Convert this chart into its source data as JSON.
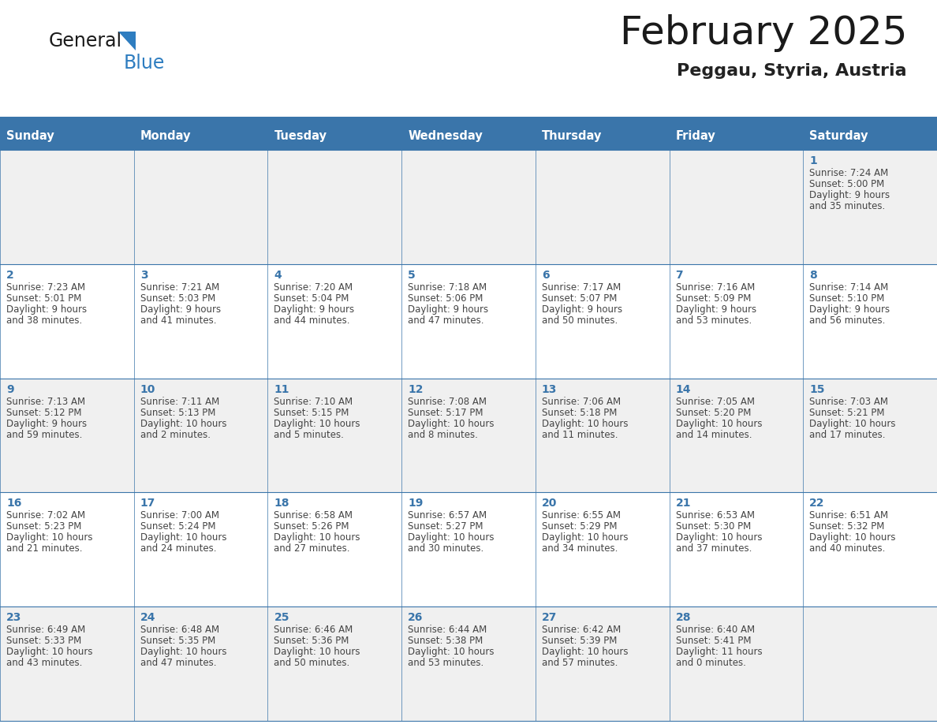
{
  "title": "February 2025",
  "subtitle": "Peggau, Styria, Austria",
  "days_of_week": [
    "Sunday",
    "Monday",
    "Tuesday",
    "Wednesday",
    "Thursday",
    "Friday",
    "Saturday"
  ],
  "header_bg": "#3A75AA",
  "header_text": "#FFFFFF",
  "cell_bg_odd": "#F0F0F0",
  "cell_bg_even": "#FFFFFF",
  "day_num_color": "#3A75AA",
  "info_text_color": "#444444",
  "border_color": "#3A75AA",
  "title_color": "#1a1a1a",
  "subtitle_color": "#222222",
  "logo_general_color": "#1a1a1a",
  "logo_blue_color": "#2E7DC0",
  "calendar_data": [
    [
      null,
      null,
      null,
      null,
      null,
      null,
      {
        "day": 1,
        "sunrise": "Sunrise: 7:24 AM",
        "sunset": "Sunset: 5:00 PM",
        "daylight": "Daylight: 9 hours",
        "daylight2": "and 35 minutes."
      }
    ],
    [
      {
        "day": 2,
        "sunrise": "Sunrise: 7:23 AM",
        "sunset": "Sunset: 5:01 PM",
        "daylight": "Daylight: 9 hours",
        "daylight2": "and 38 minutes."
      },
      {
        "day": 3,
        "sunrise": "Sunrise: 7:21 AM",
        "sunset": "Sunset: 5:03 PM",
        "daylight": "Daylight: 9 hours",
        "daylight2": "and 41 minutes."
      },
      {
        "day": 4,
        "sunrise": "Sunrise: 7:20 AM",
        "sunset": "Sunset: 5:04 PM",
        "daylight": "Daylight: 9 hours",
        "daylight2": "and 44 minutes."
      },
      {
        "day": 5,
        "sunrise": "Sunrise: 7:18 AM",
        "sunset": "Sunset: 5:06 PM",
        "daylight": "Daylight: 9 hours",
        "daylight2": "and 47 minutes."
      },
      {
        "day": 6,
        "sunrise": "Sunrise: 7:17 AM",
        "sunset": "Sunset: 5:07 PM",
        "daylight": "Daylight: 9 hours",
        "daylight2": "and 50 minutes."
      },
      {
        "day": 7,
        "sunrise": "Sunrise: 7:16 AM",
        "sunset": "Sunset: 5:09 PM",
        "daylight": "Daylight: 9 hours",
        "daylight2": "and 53 minutes."
      },
      {
        "day": 8,
        "sunrise": "Sunrise: 7:14 AM",
        "sunset": "Sunset: 5:10 PM",
        "daylight": "Daylight: 9 hours",
        "daylight2": "and 56 minutes."
      }
    ],
    [
      {
        "day": 9,
        "sunrise": "Sunrise: 7:13 AM",
        "sunset": "Sunset: 5:12 PM",
        "daylight": "Daylight: 9 hours",
        "daylight2": "and 59 minutes."
      },
      {
        "day": 10,
        "sunrise": "Sunrise: 7:11 AM",
        "sunset": "Sunset: 5:13 PM",
        "daylight": "Daylight: 10 hours",
        "daylight2": "and 2 minutes."
      },
      {
        "day": 11,
        "sunrise": "Sunrise: 7:10 AM",
        "sunset": "Sunset: 5:15 PM",
        "daylight": "Daylight: 10 hours",
        "daylight2": "and 5 minutes."
      },
      {
        "day": 12,
        "sunrise": "Sunrise: 7:08 AM",
        "sunset": "Sunset: 5:17 PM",
        "daylight": "Daylight: 10 hours",
        "daylight2": "and 8 minutes."
      },
      {
        "day": 13,
        "sunrise": "Sunrise: 7:06 AM",
        "sunset": "Sunset: 5:18 PM",
        "daylight": "Daylight: 10 hours",
        "daylight2": "and 11 minutes."
      },
      {
        "day": 14,
        "sunrise": "Sunrise: 7:05 AM",
        "sunset": "Sunset: 5:20 PM",
        "daylight": "Daylight: 10 hours",
        "daylight2": "and 14 minutes."
      },
      {
        "day": 15,
        "sunrise": "Sunrise: 7:03 AM",
        "sunset": "Sunset: 5:21 PM",
        "daylight": "Daylight: 10 hours",
        "daylight2": "and 17 minutes."
      }
    ],
    [
      {
        "day": 16,
        "sunrise": "Sunrise: 7:02 AM",
        "sunset": "Sunset: 5:23 PM",
        "daylight": "Daylight: 10 hours",
        "daylight2": "and 21 minutes."
      },
      {
        "day": 17,
        "sunrise": "Sunrise: 7:00 AM",
        "sunset": "Sunset: 5:24 PM",
        "daylight": "Daylight: 10 hours",
        "daylight2": "and 24 minutes."
      },
      {
        "day": 18,
        "sunrise": "Sunrise: 6:58 AM",
        "sunset": "Sunset: 5:26 PM",
        "daylight": "Daylight: 10 hours",
        "daylight2": "and 27 minutes."
      },
      {
        "day": 19,
        "sunrise": "Sunrise: 6:57 AM",
        "sunset": "Sunset: 5:27 PM",
        "daylight": "Daylight: 10 hours",
        "daylight2": "and 30 minutes."
      },
      {
        "day": 20,
        "sunrise": "Sunrise: 6:55 AM",
        "sunset": "Sunset: 5:29 PM",
        "daylight": "Daylight: 10 hours",
        "daylight2": "and 34 minutes."
      },
      {
        "day": 21,
        "sunrise": "Sunrise: 6:53 AM",
        "sunset": "Sunset: 5:30 PM",
        "daylight": "Daylight: 10 hours",
        "daylight2": "and 37 minutes."
      },
      {
        "day": 22,
        "sunrise": "Sunrise: 6:51 AM",
        "sunset": "Sunset: 5:32 PM",
        "daylight": "Daylight: 10 hours",
        "daylight2": "and 40 minutes."
      }
    ],
    [
      {
        "day": 23,
        "sunrise": "Sunrise: 6:49 AM",
        "sunset": "Sunset: 5:33 PM",
        "daylight": "Daylight: 10 hours",
        "daylight2": "and 43 minutes."
      },
      {
        "day": 24,
        "sunrise": "Sunrise: 6:48 AM",
        "sunset": "Sunset: 5:35 PM",
        "daylight": "Daylight: 10 hours",
        "daylight2": "and 47 minutes."
      },
      {
        "day": 25,
        "sunrise": "Sunrise: 6:46 AM",
        "sunset": "Sunset: 5:36 PM",
        "daylight": "Daylight: 10 hours",
        "daylight2": "and 50 minutes."
      },
      {
        "day": 26,
        "sunrise": "Sunrise: 6:44 AM",
        "sunset": "Sunset: 5:38 PM",
        "daylight": "Daylight: 10 hours",
        "daylight2": "and 53 minutes."
      },
      {
        "day": 27,
        "sunrise": "Sunrise: 6:42 AM",
        "sunset": "Sunset: 5:39 PM",
        "daylight": "Daylight: 10 hours",
        "daylight2": "and 57 minutes."
      },
      {
        "day": 28,
        "sunrise": "Sunrise: 6:40 AM",
        "sunset": "Sunset: 5:41 PM",
        "daylight": "Daylight: 11 hours",
        "daylight2": "and 0 minutes."
      },
      null
    ]
  ]
}
